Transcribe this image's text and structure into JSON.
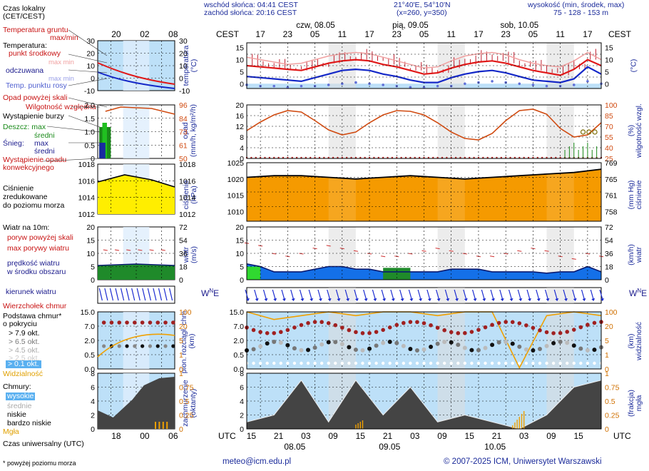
{
  "header": {
    "sunrise": "wschód słońca: 04:41 CEST",
    "sunset": "zachód słońca: 20:16 CEST",
    "coords": "21°40'E, 54°10'N",
    "grid": "(x=260,  y=350)",
    "height_label": "wysokość (min, środek, max)",
    "height_values": "75 - 128 - 153 m"
  },
  "legend": {
    "local_time": "Czas lokalny\n(CET/CEST)",
    "ground_temp": "Temperatura gruntu",
    "max_min": "max/min",
    "temperature": "Temperatura:",
    "midpoint": "punkt środkowy",
    "max_min2": "max min",
    "felt": "odczuwana",
    "max_min3": "max min",
    "dew_point": "Temp. punktu rosy",
    "precip_above": "Opad powyżej skali",
    "rel_humidity": "Wilgotność względna",
    "storm": "Wystąpienie burzy",
    "rain": "Deszcz: max",
    "rain_mean": "średni",
    "snow": "Śnieg:",
    "snow_max": "max",
    "snow_mean": "średni",
    "conv_precip": "Wystąpienie opadu\nkonwekcyjnego",
    "pressure": "Ciśnienie\nzredukowane\ndo poziomu morza",
    "wind10": "Wiatr na 10m:",
    "gust_above": "poryw powyżej skali",
    "max_gust": "max porywy wiatru",
    "wind_speed": "prędkość wiatru\nw środku obszaru",
    "wind_dir": "kierunek wiatru",
    "cloud_top": "Wierzchołek chmur",
    "cloud_base": "Podstawa chmur*\no pokryciu",
    "okt1": "> 7.9 okt.",
    "okt2": "> 6.5 okt.",
    "okt3": "> 4.5 okt.",
    "okt4": "> 2.5 okt.",
    "okt5": "> 0.1 okt.",
    "visibility": "Widzialność",
    "clouds": "Chmury:",
    "high": "wysokie",
    "mid": "średnie",
    "low": "niskie",
    "very_low": "bardzo niskie",
    "fog": "Mgła",
    "utc": "Czas uniwersalny (UTC)",
    "footnote": "* powyżej poziomu morza"
  },
  "left_axes": {
    "local_ticks": [
      "20",
      "02",
      "08"
    ],
    "utc_ticks": [
      "18",
      "00",
      "06"
    ],
    "temp_ticks": [
      "30",
      "20",
      "10",
      "0",
      "-10"
    ],
    "hum_left": [
      "2.0",
      "1.5",
      "1.0",
      "0.5",
      "0"
    ],
    "hum_right": [
      "96",
      "84",
      "73",
      "61",
      "50"
    ],
    "press_ticks": [
      "1018",
      "1016",
      "1014",
      "1012"
    ],
    "wind_left": [
      "20",
      "15",
      "10",
      "5",
      "0"
    ],
    "wind_right": [
      "72",
      "54",
      "36",
      "18",
      "0"
    ],
    "cloud_left": [
      "15.0",
      "7.0",
      "2.0",
      "0.5",
      "0.0"
    ],
    "cloud_right": [
      "100",
      "20",
      "5",
      "1",
      "0"
    ],
    "oct_left": [
      "8",
      "6",
      "4",
      "2",
      "0"
    ],
    "oct_right": [
      "1",
      "0.75",
      "0.5",
      "0.25",
      "0"
    ]
  },
  "main": {
    "cest": "CEST",
    "utc": "UTC",
    "days_top": [
      "czw, 08.05",
      "pią, 09.05",
      "sob, 10.05"
    ],
    "hours_top": [
      "17",
      "23",
      "05",
      "11",
      "17",
      "23",
      "05",
      "11",
      "17",
      "23",
      "05",
      "11",
      "17"
    ],
    "hours_bottom": [
      "15",
      "21",
      "03",
      "09",
      "15",
      "21",
      "03",
      "09",
      "15",
      "21",
      "03",
      "09",
      "15"
    ],
    "days_bottom": [
      "08.05",
      "09.05",
      "10.05"
    ],
    "temp_left": [
      "15",
      "10",
      "5",
      "0"
    ],
    "temp_right": [
      "15",
      "10",
      "5",
      "0"
    ],
    "precip_left": [
      "20",
      "16",
      "12",
      "8",
      "4",
      "0"
    ],
    "precip_right": [
      "100",
      "85",
      "70",
      "55",
      "40",
      "25"
    ],
    "press_left": [
      "1025",
      "1020",
      "1015",
      "1010"
    ],
    "press_right": [
      "769",
      "765",
      "761",
      "758"
    ],
    "wind_left": [
      "20",
      "15",
      "10",
      "5",
      "0"
    ],
    "wind_right": [
      "72",
      "54",
      "36",
      "18",
      "0"
    ],
    "cloud_left": [
      "15.0",
      "7.0",
      "2.0",
      "0.5",
      "0.0"
    ],
    "cloud_right": [
      "100",
      "20",
      "5",
      "1",
      "0"
    ],
    "oct_left": [
      "8",
      "6",
      "4",
      "2",
      "0"
    ],
    "oct_right": [
      "1",
      "0.75",
      "0.5",
      "0.25",
      "0"
    ],
    "axis_temp_l": "temperatura\n(°C)",
    "axis_temp_r": "(°C)",
    "axis_precip_l": "opad\n(mm/h, kg/m²/h)",
    "axis_precip_r": "(%)\nwilgotność wzgl.",
    "axis_press_l": "ciśnienie\n(hPa)",
    "axis_press_r": "(mm Hg)\nciśnienie",
    "axis_wind_l": "wiatr\n(m/s)",
    "axis_wind_r": "(km/h)\nwiatr",
    "axis_cloud_l": "pion. rozciągł. chm.\n(km)",
    "axis_cloud_r": "(km)\nwidzialność",
    "axis_oct_l": "zachmurzenie\n(oktanty)",
    "axis_oct_r": "(frakcja)\nmgła"
  },
  "footer": {
    "email": "meteo@icm.edu.pl",
    "copyright": "© 2007-2025 ICM, Uniwersytet Warszawski"
  },
  "colors": {
    "panel_bg": "#bde0f8",
    "night_band": "#dcdcdc",
    "temp_red": "#e01818",
    "temp_blue": "#1428c8",
    "humidity": "#d04a10",
    "pressure_fill": "#f59a00",
    "pressure_line": "#000000",
    "wind_fill": "#1470e8",
    "wind_green": "#1f8a2a",
    "cloud_dark": "#444444",
    "visibility": "#f0a000"
  },
  "chart_data": [
    {
      "type": "line",
      "title": "temperatura (°C)",
      "x": [
        0,
        3,
        6,
        9,
        12,
        15,
        18,
        21,
        24,
        27,
        30,
        33,
        36,
        39,
        42,
        45,
        48,
        51,
        54,
        57,
        60,
        63,
        66,
        69,
        72,
        75,
        78
      ],
      "series": [
        {
          "name": "temperatura max",
          "values": [
            11,
            10,
            9,
            8,
            8.5,
            10,
            11.5,
            12.5,
            13,
            12.5,
            11,
            9.5,
            8,
            6.5,
            7,
            9.5,
            11.5,
            12.5,
            13,
            12,
            10,
            8.5,
            7.5,
            7,
            9.5,
            13,
            10
          ]
        },
        {
          "name": "punkt środkowy",
          "values": [
            7.5,
            7,
            6.5,
            6,
            5.5,
            7,
            8.5,
            9.5,
            10,
            9.5,
            8,
            7,
            5.5,
            4,
            4.5,
            6.5,
            8,
            9,
            9.5,
            8.5,
            7,
            5.5,
            4.5,
            3.5,
            6,
            10,
            7.5
          ]
        },
        {
          "name": "odczuwana",
          "values": [
            3,
            2.5,
            2,
            1.5,
            1,
            2.5,
            4,
            5.5,
            6,
            5.5,
            4,
            3,
            1.5,
            0.5,
            0.5,
            2.5,
            4,
            5,
            5.5,
            4.5,
            3,
            1.5,
            1,
            0.5,
            2,
            7,
            4
          ]
        },
        {
          "name": "Temp. punktu rosy",
          "values": [
            -0.5,
            -1,
            -1,
            -1.5,
            -1,
            -1,
            -0.5,
            0,
            0.5,
            0,
            -0.5,
            -1,
            -1.5,
            -1.5,
            -1,
            -1,
            0,
            0.5,
            1,
            0.5,
            0,
            -0.5,
            -1,
            -1,
            -0.5,
            1,
            0
          ]
        }
      ],
      "ylim": [
        -2,
        17
      ]
    },
    {
      "type": "line",
      "title": "wilgotność względna (%)",
      "x": [
        0,
        3,
        6,
        9,
        12,
        15,
        18,
        21,
        24,
        27,
        30,
        33,
        36,
        39,
        42,
        45,
        48,
        51,
        54,
        57,
        60,
        63,
        66,
        69,
        72,
        75,
        78
      ],
      "series": [
        {
          "name": "wilgotność",
          "values": [
            64,
            76,
            86,
            92,
            90,
            78,
            65,
            58,
            62,
            75,
            86,
            92,
            91,
            86,
            75,
            62,
            53,
            51,
            60,
            78,
            92,
            94,
            87,
            67,
            55,
            58,
            75
          ]
        }
      ],
      "ylim": [
        25,
        100
      ]
    },
    {
      "type": "area",
      "title": "ciśnienie (hPa)",
      "x": [
        0,
        6,
        12,
        18,
        24,
        30,
        36,
        42,
        48,
        54,
        60,
        66,
        72,
        78
      ],
      "series": [
        {
          "name": "ciśnienie",
          "values": [
            1020.5,
            1021,
            1021,
            1020.5,
            1020,
            1020.5,
            1021,
            1020.5,
            1020,
            1020.5,
            1021,
            1021.5,
            1022,
            1023
          ]
        }
      ],
      "ylim": [
        1005,
        1025
      ]
    },
    {
      "type": "area",
      "title": "wiatr (m/s)",
      "x": [
        0,
        3,
        6,
        9,
        12,
        15,
        18,
        21,
        24,
        27,
        30,
        33,
        36,
        39,
        42,
        45,
        48,
        51,
        54,
        57,
        60,
        63,
        66,
        69,
        72,
        75,
        78
      ],
      "series": [
        {
          "name": "prędkość wiatru",
          "values": [
            6,
            5,
            3,
            3,
            3,
            4,
            5,
            5,
            4,
            4,
            3,
            3,
            3,
            3,
            3,
            4,
            4,
            4,
            3,
            3,
            3,
            3,
            2.5,
            3,
            3,
            5,
            3
          ]
        },
        {
          "name": "max porywy wiatru",
          "values": [
            14,
            13,
            10,
            9,
            10,
            12,
            13,
            12,
            11,
            10,
            9,
            9,
            10,
            11,
            12,
            11,
            10,
            9,
            9,
            10,
            11,
            12,
            11,
            9,
            8,
            10,
            9
          ]
        }
      ],
      "ylim": [
        0,
        20
      ]
    },
    {
      "type": "line",
      "title": "widzialność (km)",
      "x": [
        0,
        6,
        12,
        18,
        24,
        30,
        36,
        42,
        48,
        54,
        60,
        66,
        72,
        78
      ],
      "series": [
        {
          "name": "widzialność",
          "values": [
            15,
            13,
            14,
            15,
            14,
            15,
            15,
            14,
            15,
            15,
            0.3,
            14,
            15,
            14
          ]
        }
      ],
      "ylim": [
        0,
        15
      ]
    },
    {
      "type": "area",
      "title": "zachmurzenie (oktanty)",
      "x": [
        0,
        6,
        12,
        18,
        24,
        30,
        36,
        42,
        48,
        54,
        60,
        66,
        72,
        78
      ],
      "series": [
        {
          "name": "zachmurzenie",
          "values": [
            1,
            2,
            7,
            1,
            7,
            2,
            6,
            1,
            2,
            1,
            0,
            2,
            6,
            7
          ]
        },
        {
          "name": "mgła",
          "values": [
            0,
            0,
            0,
            0,
            0.1,
            0,
            0,
            0,
            0,
            0,
            0.7,
            0,
            0,
            0
          ]
        }
      ],
      "ylim": [
        0,
        8
      ]
    }
  ]
}
